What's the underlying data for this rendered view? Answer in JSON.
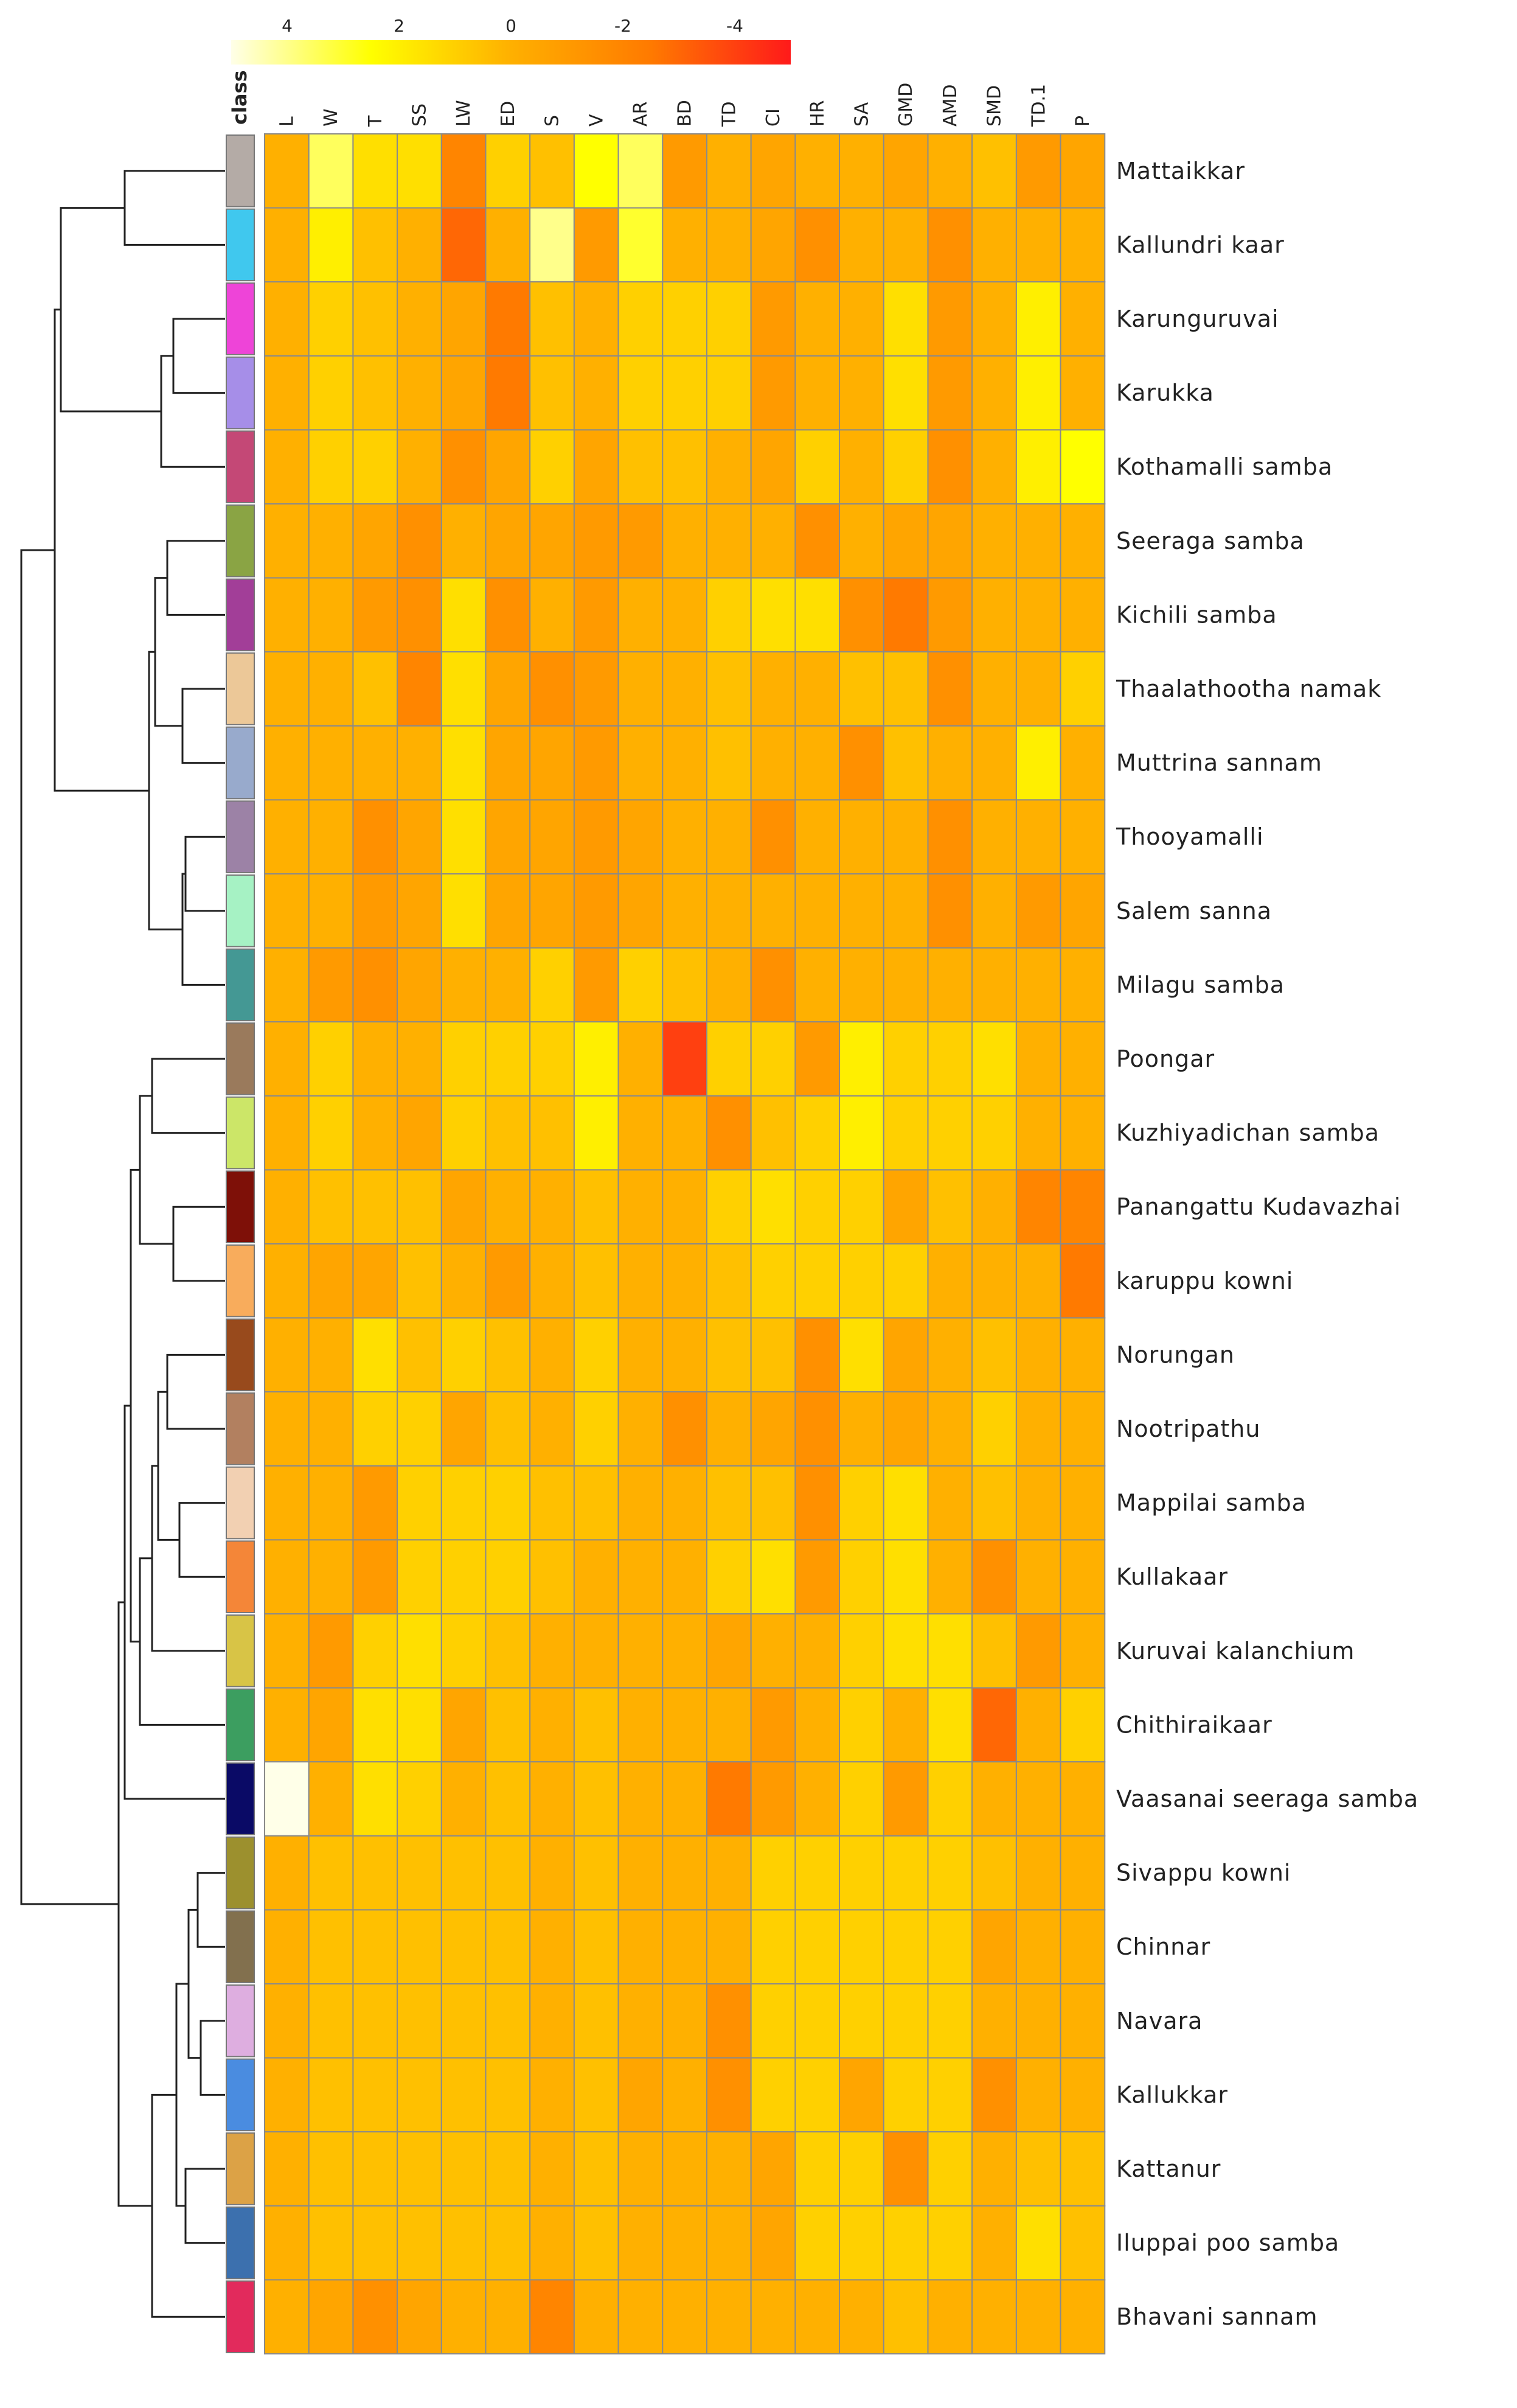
{
  "chart_data": {
    "type": "heatmap",
    "title": "",
    "columns": [
      "L",
      "W",
      "T",
      "SS",
      "LW",
      "ED",
      "S",
      "V",
      "AR",
      "BD",
      "TD",
      "CI",
      "HR",
      "SA",
      "GMD",
      "AMD",
      "SMD",
      "TD.1",
      "P"
    ],
    "class_label": "class",
    "color_scale": {
      "ticks": [
        "4",
        "2",
        "0",
        "-2",
        "-4"
      ],
      "tick_values": [
        4,
        2,
        0,
        -2,
        -4
      ],
      "range": [
        5,
        -5
      ],
      "colors": [
        "#ffffe8",
        "#ffff00",
        "#ffb000",
        "#ff7a00",
        "#ff1a1a"
      ]
    },
    "rows": [
      {
        "name": "Mattaikkar",
        "class_color": "#b4aba6",
        "values": [
          0,
          3.5,
          1.5,
          1.5,
          -2,
          1,
          0.5,
          2.5,
          3.5,
          -1,
          0,
          -0.5,
          0,
          0,
          -0.5,
          0,
          0.5,
          -1,
          -0.5
        ]
      },
      {
        "name": "Kallundri kaar",
        "class_color": "#40c8ee",
        "values": [
          0,
          2,
          0.5,
          0,
          -3,
          0,
          4,
          -1,
          3,
          0,
          0,
          -0.5,
          -1.5,
          0,
          0,
          -1.5,
          0,
          0,
          0
        ]
      },
      {
        "name": "Karunguruvai",
        "class_color": "#ee44d8",
        "values": [
          0,
          1,
          0.5,
          0,
          -0.5,
          -2.5,
          0.5,
          0,
          1,
          1,
          1,
          -1,
          0,
          0,
          1.5,
          -1,
          0,
          2,
          0
        ]
      },
      {
        "name": "Karukka",
        "class_color": "#a68ee8",
        "values": [
          0,
          1,
          0.5,
          0,
          -0.5,
          -2.5,
          0.5,
          0,
          1,
          1,
          1,
          -1,
          0,
          0,
          1.5,
          -1,
          0,
          2,
          0
        ]
      },
      {
        "name": "Kothamalli samba",
        "class_color": "#c44876",
        "values": [
          0,
          1,
          1,
          0,
          -1.5,
          -0.5,
          1,
          -0.5,
          0.5,
          0.5,
          0,
          -0.5,
          1,
          0,
          1,
          -1.5,
          0,
          2,
          2.5
        ]
      },
      {
        "name": "Seeraga samba",
        "class_color": "#8aa444",
        "values": [
          0,
          0,
          -0.5,
          -1.5,
          0,
          -0.5,
          -0.5,
          -1,
          -1,
          0,
          0,
          0,
          -1.5,
          0,
          -0.5,
          -0.5,
          0,
          0,
          0
        ]
      },
      {
        "name": "Kichili samba",
        "class_color": "#a23e98",
        "values": [
          0,
          0,
          -1,
          -1.5,
          1.5,
          -1.5,
          0,
          -1,
          0,
          0,
          1,
          1.5,
          1.5,
          -1.5,
          -2.5,
          -1,
          0,
          0,
          0
        ]
      },
      {
        "name": "Thaalathootha namak",
        "class_color": "#ecc898",
        "values": [
          0,
          0,
          0.5,
          -2,
          1.5,
          -0.5,
          -1.5,
          -1,
          0,
          0,
          0.5,
          0,
          0,
          0.5,
          0.5,
          -1.5,
          0,
          0,
          1
        ]
      },
      {
        "name": "Muttrina sannam",
        "class_color": "#98aacc",
        "values": [
          0,
          0,
          0,
          0,
          1.5,
          -0.5,
          -0.5,
          -1,
          0,
          0,
          0.5,
          0,
          0,
          -1.5,
          0.5,
          0,
          0,
          2,
          0
        ]
      },
      {
        "name": "Thooyamalli",
        "class_color": "#9c82a6",
        "values": [
          0,
          0,
          -1.5,
          -0.5,
          1.5,
          -0.5,
          -0.5,
          -1,
          -0.5,
          0,
          0,
          -1.5,
          0,
          0,
          0,
          -1.5,
          0,
          0,
          0
        ]
      },
      {
        "name": "Salem sanna",
        "class_color": "#a6f2c4",
        "values": [
          0,
          0,
          -1,
          -0.5,
          1.5,
          -0.5,
          -0.5,
          -1,
          -0.5,
          0,
          0,
          0,
          0,
          0,
          0,
          -1.5,
          0,
          -1,
          -0.5
        ]
      },
      {
        "name": "Milagu samba",
        "class_color": "#449894",
        "values": [
          0,
          -1,
          -1.5,
          -0.5,
          0,
          0,
          1,
          -1,
          1,
          0.5,
          0,
          -1.5,
          0,
          0,
          0,
          0,
          0,
          0,
          0
        ]
      },
      {
        "name": "Poongar",
        "class_color": "#9a7a5c",
        "values": [
          0,
          1,
          0,
          0,
          1,
          1,
          1,
          2,
          0,
          -4,
          1,
          1,
          -1,
          2,
          1,
          1,
          1.5,
          0,
          0
        ]
      },
      {
        "name": "Kuzhiyadichan samba",
        "class_color": "#cce668",
        "values": [
          0,
          1,
          0,
          -0.5,
          1,
          0.5,
          0.5,
          2,
          0,
          0,
          -1.5,
          0.5,
          1,
          2,
          1,
          1,
          1,
          0,
          0
        ]
      },
      {
        "name": "Panangattu Kudavazhai",
        "class_color": "#7e1008",
        "values": [
          0,
          0.5,
          0.5,
          0.5,
          -0.5,
          0,
          0,
          0.5,
          0,
          0,
          1,
          1.5,
          1,
          1,
          -0.5,
          0.5,
          0,
          -2,
          -2
        ]
      },
      {
        "name": "karuppu kowni",
        "class_color": "#f8ac5c",
        "values": [
          0,
          -0.5,
          -0.5,
          0.5,
          0,
          -1,
          0,
          0.5,
          0,
          0,
          0.5,
          1,
          1,
          1,
          1,
          0,
          0,
          0,
          -2.5
        ]
      },
      {
        "name": "Norungan",
        "class_color": "#984a1c",
        "values": [
          0,
          0,
          1.5,
          0.5,
          1,
          0.5,
          0,
          1,
          0,
          0,
          0.5,
          0.5,
          -1.5,
          1.5,
          -0.5,
          0,
          0.5,
          0,
          0
        ]
      },
      {
        "name": "Nootripathu",
        "class_color": "#b28060",
        "values": [
          0,
          0,
          1,
          1,
          -0.5,
          0.5,
          0,
          1,
          0,
          -1.5,
          0,
          -0.5,
          -1.5,
          0,
          -0.5,
          0,
          1,
          0,
          0
        ]
      },
      {
        "name": "Mappilai samba",
        "class_color": "#f2d0b2",
        "values": [
          0,
          0,
          -1,
          1,
          1,
          1,
          0.5,
          0.5,
          0,
          0,
          0.5,
          0.5,
          -1.5,
          1,
          1.5,
          0,
          0.5,
          0,
          0
        ]
      },
      {
        "name": "Kullakaar",
        "class_color": "#f48638",
        "values": [
          0,
          0,
          -1,
          1,
          1,
          1,
          0.5,
          0,
          0,
          0,
          1,
          1.5,
          -1,
          1,
          1.5,
          0,
          -1.5,
          0,
          0
        ]
      },
      {
        "name": "Kuruvai kalanchium",
        "class_color": "#d8c446",
        "values": [
          0,
          -1,
          1,
          1.5,
          1,
          0.5,
          0,
          0,
          0,
          0,
          -0.5,
          0,
          0,
          1,
          1.5,
          1.5,
          0.5,
          -1,
          0
        ]
      },
      {
        "name": "Chithiraikaar",
        "class_color": "#3c9e60",
        "values": [
          0,
          -0.5,
          1.5,
          1.5,
          -0.5,
          0.5,
          0,
          0.5,
          0,
          0,
          0,
          -1,
          0,
          1,
          0,
          1.5,
          -3,
          0,
          1
        ]
      },
      {
        "name": "Vaasanai seeraga samba",
        "class_color": "#0a0a66",
        "values": [
          5,
          0,
          1.5,
          1,
          0,
          0.5,
          0,
          0.5,
          0,
          0,
          -2.5,
          -1,
          0,
          1,
          -1,
          1,
          0,
          0,
          0
        ]
      },
      {
        "name": "Sivappu kowni",
        "class_color": "#9c902e",
        "values": [
          0,
          0.5,
          0.5,
          0.5,
          0.5,
          0.5,
          0,
          0.5,
          0,
          0,
          0,
          1,
          1,
          1,
          1,
          1,
          0.5,
          0,
          0
        ]
      },
      {
        "name": "Chinnar",
        "class_color": "#82704e",
        "values": [
          0,
          0.5,
          0.5,
          0.5,
          0.5,
          0.5,
          0,
          0.5,
          0,
          0,
          0,
          1,
          1,
          1,
          1,
          1,
          -0.5,
          0,
          0
        ]
      },
      {
        "name": "Navara",
        "class_color": "#deaee0",
        "values": [
          0,
          0.5,
          0.5,
          0.5,
          0.5,
          0.5,
          0,
          0.5,
          0,
          0,
          -1.5,
          1,
          1,
          1,
          1,
          1,
          0,
          0,
          0
        ]
      },
      {
        "name": "Kallukkar",
        "class_color": "#4a8ce0",
        "values": [
          0,
          0.5,
          0.5,
          0.5,
          0.5,
          0.5,
          0,
          0.5,
          -0.5,
          0,
          -1.5,
          1,
          1,
          -0.5,
          1,
          1,
          -1.5,
          0,
          0
        ]
      },
      {
        "name": "Kattanur",
        "class_color": "#dca246",
        "values": [
          0,
          0.5,
          0.5,
          0.5,
          0.5,
          0.5,
          0,
          0.5,
          0,
          0,
          0,
          -0.5,
          1,
          1,
          -1.5,
          1,
          0,
          0.5,
          0.5
        ]
      },
      {
        "name": "Iluppai poo samba",
        "class_color": "#3c70ae",
        "values": [
          0,
          0.5,
          0.5,
          0.5,
          0.5,
          0.5,
          0,
          0.5,
          0,
          0,
          0,
          -0.5,
          1,
          1,
          1,
          1,
          0,
          1.5,
          0.5
        ]
      },
      {
        "name": "Bhavani sannam",
        "class_color": "#e22a5c",
        "values": [
          0,
          -0.5,
          -1.5,
          -0.5,
          0,
          0,
          -2,
          0,
          0,
          0,
          0,
          0,
          0,
          0,
          0.5,
          0,
          0,
          0,
          0
        ]
      }
    ]
  }
}
